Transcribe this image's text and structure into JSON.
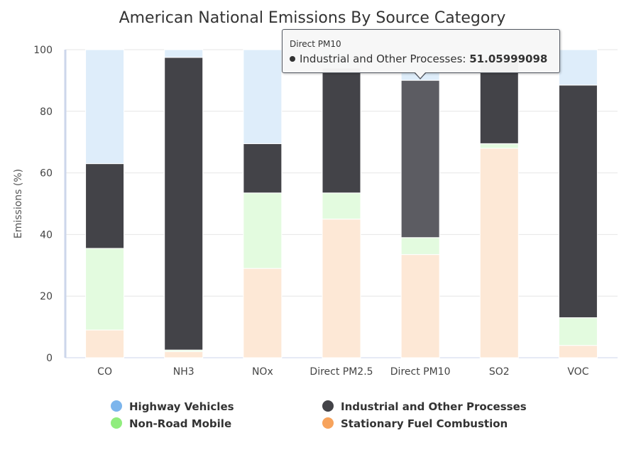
{
  "chart_data": {
    "type": "bar",
    "stacked": true,
    "title": "American National Emissions By Source Category",
    "xlabel": "",
    "ylabel": "Emissions (%)",
    "ylim": [
      0,
      100
    ],
    "yticks": [
      0,
      20,
      40,
      60,
      80,
      100
    ],
    "categories": [
      "CO",
      "NH3",
      "NOx",
      "Direct PM2.5",
      "Direct PM10",
      "SO2",
      "VOC"
    ],
    "series": [
      {
        "name": "Stationary Fuel Combustion",
        "color": "#f7a35c",
        "values": [
          9,
          2,
          29,
          45,
          33.5,
          68,
          4
        ]
      },
      {
        "name": "Non-Road Mobile",
        "color": "#90ed7d",
        "values": [
          26.5,
          0.5,
          24.5,
          8.5,
          5.5,
          1.5,
          9
        ]
      },
      {
        "name": "Industrial and Other Processes",
        "color": "#434348",
        "values": [
          27.5,
          95,
          16,
          40.5,
          51.06,
          27,
          75.5
        ]
      },
      {
        "name": "Highway Vehicles",
        "color": "#7cb5ec",
        "values": [
          37,
          2.5,
          30.5,
          6,
          10,
          3.5,
          11.5
        ]
      }
    ],
    "legend": {
      "position": "bottom",
      "items": [
        {
          "name": "Highway Vehicles",
          "color": "#7cb5ec"
        },
        {
          "name": "Industrial and Other Processes",
          "color": "#434348"
        },
        {
          "name": "Non-Road Mobile",
          "color": "#90ed7d"
        },
        {
          "name": "Stationary Fuel Combustion",
          "color": "#f7a35c"
        }
      ]
    },
    "grid": true,
    "highlighted": {
      "category": "Direct PM10",
      "series": "Industrial and Other Processes"
    }
  },
  "tooltip": {
    "header": "Direct PM10",
    "series_name": "Industrial and Other Processes:",
    "value": "51.05999098"
  }
}
